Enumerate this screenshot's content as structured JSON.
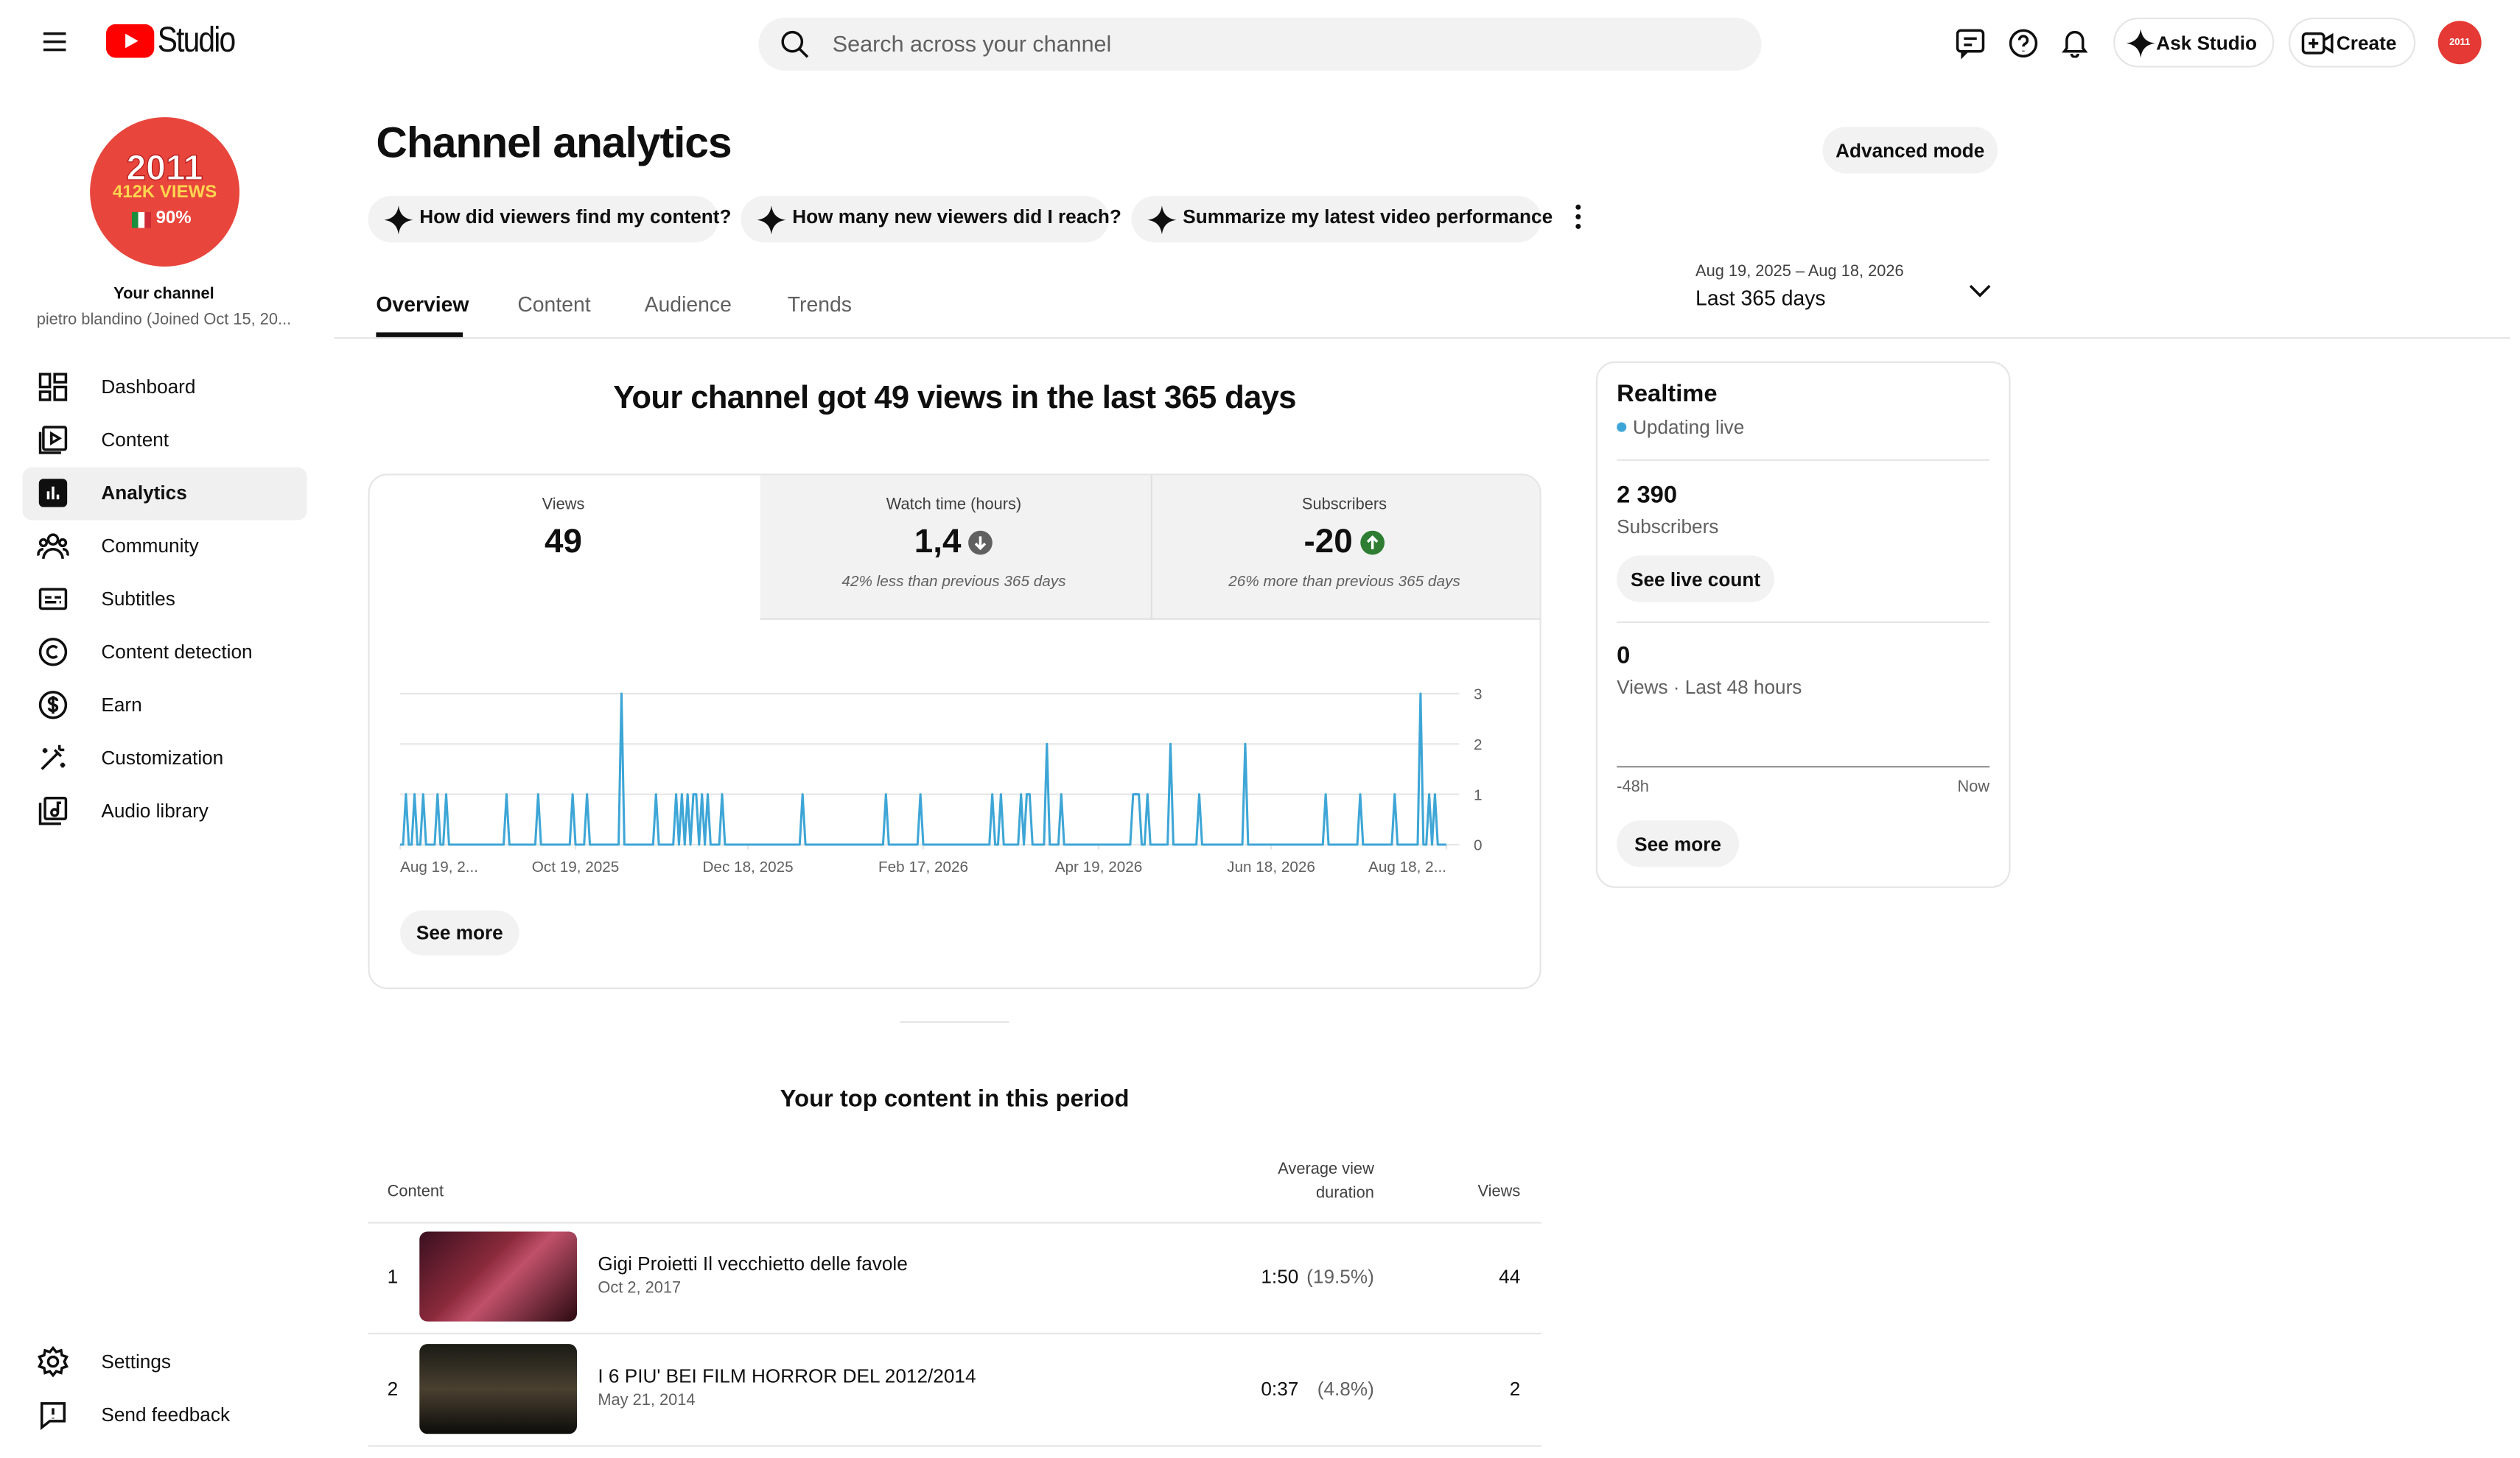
{
  "topbar": {
    "brand": "Studio",
    "search_placeholder": "Search across your channel",
    "ask": "Ask Studio",
    "create": "Create",
    "avatar_text": "2011"
  },
  "sidebar": {
    "avatar": {
      "year": "2011",
      "views": "412K VIEWS",
      "percent": "90%"
    },
    "channel_label": "Your channel",
    "channel_name": "pietro blandino (Joined Oct 15, 20...",
    "nav": [
      "Dashboard",
      "Content",
      "Analytics",
      "Community",
      "Subtitles",
      "Content detection",
      "Earn",
      "Customization",
      "Audio library"
    ],
    "footer": [
      "Settings",
      "Send feedback"
    ]
  },
  "header": {
    "title": "Channel analytics",
    "advanced": "Advanced mode",
    "chips": [
      "How did viewers find my content?",
      "How many new viewers did I reach?",
      "Summarize my latest video performance"
    ]
  },
  "tabs": [
    "Overview",
    "Content",
    "Audience",
    "Trends"
  ],
  "date_range": {
    "range": "Aug 19, 2025 – Aug 18, 2026",
    "label": "Last 365 days"
  },
  "summary": "Your channel got 49 views in the last 365 days",
  "stats": [
    {
      "label": "Views",
      "value": "49"
    },
    {
      "label": "Watch time (hours)",
      "value": "1,4",
      "note": "42% less than previous 365 days"
    },
    {
      "label": "Subscribers",
      "value": "-20",
      "note": "26% more than previous 365 days"
    }
  ],
  "chart_data": {
    "type": "line",
    "x": [
      0,
      1,
      2,
      3,
      4,
      5,
      6,
      7,
      8,
      9,
      12,
      13,
      14,
      15,
      16,
      17,
      36,
      37,
      38,
      47,
      48,
      49,
      59,
      60,
      61,
      64,
      65,
      66,
      76,
      77,
      78,
      88,
      89,
      90,
      95,
      96,
      97,
      98,
      99,
      100,
      101,
      102,
      103,
      104,
      105,
      106,
      107,
      108,
      111,
      112,
      113,
      139,
      140,
      141,
      168,
      169,
      170,
      180,
      181,
      182,
      205,
      206,
      207,
      208,
      209,
      210,
      215,
      216,
      217,
      218,
      219,
      220,
      224,
      225,
      226,
      229,
      230,
      231,
      254,
      255,
      256,
      257,
      258,
      259,
      260,
      261,
      267,
      268,
      269,
      277,
      278,
      279,
      293,
      294,
      295,
      321,
      322,
      323,
      333,
      334,
      335,
      345,
      346,
      347,
      354,
      355,
      356,
      357,
      358,
      359,
      360,
      361,
      364
    ],
    "series": [
      {
        "color": "#3ea6d6",
        "values": [
          0,
          0,
          1,
          0,
          0,
          1,
          0,
          0,
          1,
          0,
          0,
          1,
          0,
          0,
          1,
          0,
          0,
          1,
          0,
          0,
          1,
          0,
          0,
          1,
          0,
          0,
          1,
          0,
          0,
          3,
          0,
          0,
          1,
          0,
          0,
          1,
          0,
          1,
          0,
          1,
          0,
          1,
          1,
          0,
          1,
          0,
          1,
          0,
          0,
          1,
          0,
          0,
          1,
          0,
          0,
          1,
          0,
          0,
          1,
          0,
          0,
          1,
          0,
          0,
          1,
          0,
          0,
          1,
          0,
          1,
          1,
          0,
          0,
          2,
          0,
          0,
          1,
          0,
          0,
          1,
          1,
          1,
          0,
          0,
          1,
          0,
          0,
          2,
          0,
          0,
          1,
          0,
          0,
          2,
          0,
          0,
          1,
          0,
          0,
          1,
          0,
          0,
          1,
          0,
          0,
          3,
          0,
          0,
          1,
          0,
          1,
          0,
          0
        ]
      }
    ],
    "xlim": [
      0,
      364
    ],
    "xticks": [
      {
        "value": 0,
        "label": "Aug 19, 2..."
      },
      {
        "value": 61,
        "label": "Oct 19, 2025"
      },
      {
        "value": 121,
        "label": "Dec 18, 2025"
      },
      {
        "value": 182,
        "label": "Feb 17, 2026"
      },
      {
        "value": 243,
        "label": "Apr 19, 2026"
      },
      {
        "value": 303,
        "label": "Jun 18, 2026"
      },
      {
        "value": 364,
        "label": "Aug 18, 2..."
      }
    ],
    "ylim": [
      0,
      3
    ],
    "yticks": [
      0,
      1,
      2,
      3
    ],
    "grid": true
  },
  "see_more": "See more",
  "top_content": {
    "title": "Your top content in this period",
    "columns": [
      "Content",
      "Average view duration",
      "Views"
    ],
    "rows": [
      {
        "rank": "1",
        "title": "Gigi Proietti Il vecchietto delle favole",
        "date": "Oct 2, 2017",
        "duration": "1:50",
        "percent": "(19.5%)",
        "views": "44"
      },
      {
        "rank": "2",
        "title": "I 6 PIU' BEI FILM HORROR DEL 2012/2014",
        "date": "May 21, 2014",
        "duration": "0:37",
        "percent": "(4.8%)",
        "views": "2"
      }
    ]
  },
  "realtime": {
    "title": "Realtime",
    "status": "Updating live",
    "subscribers": "2 390",
    "subscribers_label": "Subscribers",
    "live_count": "See live count",
    "views": "0",
    "views_label": "Views · Last 48 hours",
    "start": "-48h",
    "end": "Now",
    "see_more": "See more"
  }
}
